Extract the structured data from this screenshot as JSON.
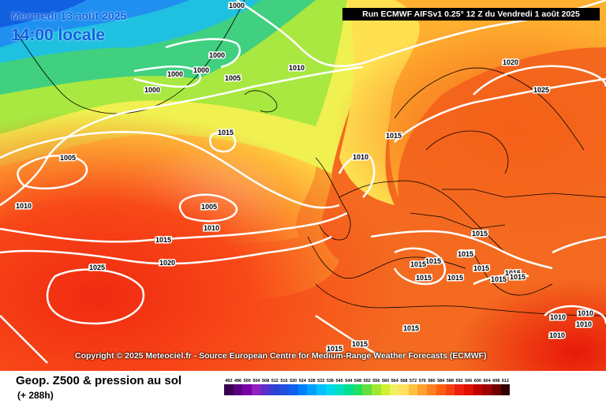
{
  "header": {
    "date": "Mercredi 13 août 2025",
    "local_time": "14:00 locale",
    "run": "Run ECMWF AIFSv1 0.25° 12 Z du Vendredi 1 août 2025"
  },
  "copyright": "Copyright © 2025 Meteociel.fr - Source European Centre for Medium-Range Weather Forecasts (ECMWF)",
  "footer": {
    "parameter": "Geop. Z500 & pression au sol",
    "lead_time": "(+ 288h)"
  },
  "legend": {
    "values": [
      "492",
      "496",
      "500",
      "504",
      "508",
      "512",
      "516",
      "520",
      "524",
      "528",
      "532",
      "536",
      "540",
      "544",
      "548",
      "552",
      "556",
      "560",
      "564",
      "568",
      "572",
      "576",
      "580",
      "584",
      "588",
      "592",
      "596",
      "600",
      "604",
      "608",
      "612"
    ],
    "colors": [
      "#3a0050",
      "#5a0080",
      "#7a00a8",
      "#9020c0",
      "#5a30c8",
      "#3040d0",
      "#2050e0",
      "#1060f0",
      "#0080ff",
      "#00a0ff",
      "#00c0ff",
      "#00d8f0",
      "#00e0c0",
      "#00e090",
      "#20e060",
      "#60e040",
      "#a0e830",
      "#d0f030",
      "#f0f060",
      "#ffe060",
      "#ffc040",
      "#ffa030",
      "#ff8020",
      "#ff6010",
      "#f84010",
      "#f02010",
      "#e01000",
      "#c00000",
      "#a00000",
      "#700000",
      "#300000"
    ]
  },
  "pressure_labels": [
    "1000",
    "1000",
    "1000",
    "1000",
    "1000",
    "1005",
    "1010",
    "1015",
    "1005",
    "1010",
    "1005",
    "1010",
    "1015",
    "1020",
    "1025",
    "1015",
    "1010",
    "1020",
    "1025",
    "1015",
    "1015",
    "1015",
    "1015",
    "1015",
    "1015",
    "1015",
    "1015",
    "1015",
    "1015",
    "1015",
    "1010",
    "1010",
    "1010",
    "1010",
    "1015",
    "1015",
    "1015"
  ]
}
